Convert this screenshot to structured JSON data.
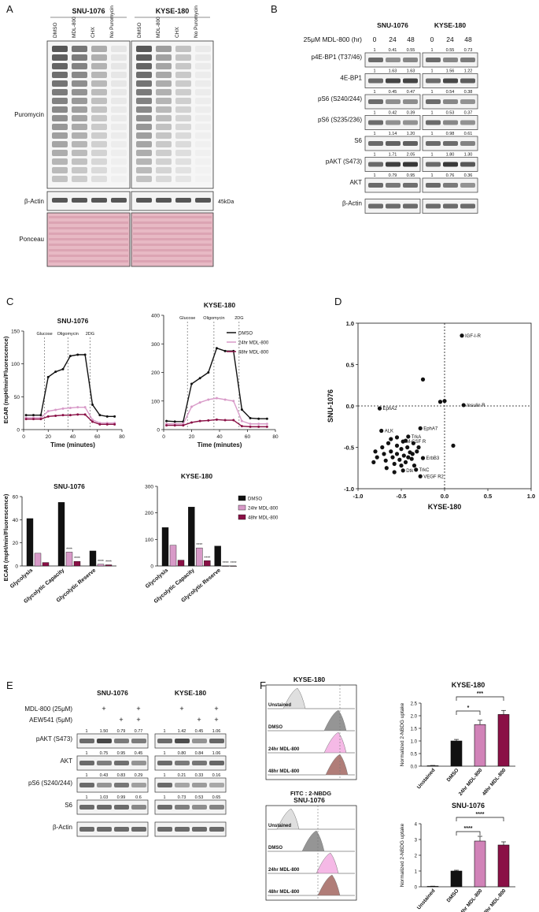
{
  "panels": {
    "A": {
      "letter": "A",
      "cell_lines": [
        "SNU-1076",
        "KYSE-180"
      ],
      "lanes": [
        "DMSO",
        "MDL-800",
        "CHX",
        "No Puromycin"
      ],
      "rows": [
        "Puromycin",
        "β-Actin",
        "Ponceau"
      ],
      "marker": "45kDa"
    },
    "B": {
      "letter": "B",
      "cell_lines": [
        "SNU-1076",
        "KYSE-180"
      ],
      "treatment_label": "25μM MDL-800 (hr)",
      "times": [
        "0",
        "24",
        "48",
        "0",
        "24",
        "48"
      ],
      "rows": [
        {
          "label": "p4E-BP1 (T37/46)",
          "q": [
            "1",
            "0.41",
            "0.55",
            "1",
            "0.55",
            "0.73"
          ]
        },
        {
          "label": "4E-BP1",
          "q": [
            "1",
            "1.63",
            "1.63",
            "1",
            "1.56",
            "1.22"
          ]
        },
        {
          "label": "pS6 (S240/244)",
          "q": [
            "1",
            "0.45",
            "0.47",
            "1",
            "0.54",
            "0.38"
          ]
        },
        {
          "label": "pS6 (S235/236)",
          "q": [
            "1",
            "0.42",
            "0.39",
            "1",
            "0.53",
            "0.37"
          ]
        },
        {
          "label": "S6",
          "q": [
            "1",
            "1.14",
            "1.20",
            "1",
            "0.98",
            "0.61"
          ]
        },
        {
          "label": "pAKT (S473)",
          "q": [
            "1",
            "1.71",
            "2.05",
            "1",
            "1.80",
            "1.30"
          ]
        },
        {
          "label": "AKT",
          "q": [
            "1",
            "0.79",
            "0.95",
            "1",
            "0.76",
            "0.36"
          ]
        },
        {
          "label": "β-Actin",
          "q": [
            "",
            "",
            "",
            "",
            "",
            ""
          ]
        }
      ]
    },
    "C": {
      "letter": "C",
      "ylabel_top": "ECAR (mpH/min/Fluorescence)",
      "ylabel_bottom": "ECAR (mpH/min/Fluorescence)",
      "xlabel": "Time (minutes)",
      "injections": [
        "Glucose",
        "Oligomycin",
        "2DG"
      ],
      "legend": [
        "DMSO",
        "24hr MDL-800",
        "48hr MDL-800"
      ],
      "colors": {
        "dmso": "#111111",
        "h24": "#d89ac8",
        "h48": "#8a1046"
      }
    },
    "D": {
      "letter": "D",
      "xlabel": "KYSE-180",
      "ylabel": "SNU-1076"
    },
    "E": {
      "letter": "E",
      "cell_lines": [
        "SNU-1076",
        "KYSE-180"
      ],
      "treatments": [
        {
          "label": "MDL-800 (25μM)",
          "marks": [
            "",
            "+",
            "",
            "+",
            "",
            "+",
            "",
            "+"
          ]
        },
        {
          "label": "AEW541 (5μM)",
          "marks": [
            "",
            "",
            "+",
            "+",
            "",
            "",
            "+",
            "+"
          ]
        }
      ],
      "rows": [
        {
          "label": "pAKT (S473)",
          "q": [
            "1",
            "1.50",
            "0.79",
            "0.77",
            "1",
            "1.42",
            "0.45",
            "1.06"
          ]
        },
        {
          "label": "AKT",
          "q": [
            "1",
            "0.75",
            "0.95",
            "0.45",
            "1",
            "0.80",
            "0.84",
            "1.06"
          ]
        },
        {
          "label": "pS6 (S240/244)",
          "q": [
            "1",
            "0.43",
            "0.83",
            "0.29",
            "1",
            "0.21",
            "0.33",
            "0.16"
          ]
        },
        {
          "label": "S6",
          "q": [
            "1",
            "1.03",
            "0.99",
            "0.6",
            "1",
            "0.73",
            "0.53",
            "0.65"
          ]
        },
        {
          "label": "β-Actin",
          "q": [
            "",
            "",
            "",
            "",
            "",
            "",
            "",
            ""
          ]
        }
      ]
    },
    "F": {
      "letter": "F",
      "hist_titles": [
        "KYSE-180",
        "SNU-1076"
      ],
      "hist_rows": [
        "Unstained",
        "DMSO",
        "24hr MDL-800",
        "48hr MDL-800"
      ],
      "hist_xlabel": "FITC : 2-NBDG",
      "bar_titles": [
        "KYSE-180",
        "SNU-1076"
      ],
      "bar_ylabel": "Normalized 2-NBDG uptake",
      "bar_categories": [
        "Unstained",
        "DMSO",
        "24hr MDL-800",
        "48hr MDL-800"
      ]
    }
  },
  "chart_data": [
    {
      "type": "line",
      "title": "SNU-1076",
      "xlabel": "Time (minutes)",
      "ylabel": "ECAR (mpH/min/Fluorescence)",
      "xlim": [
        0,
        80
      ],
      "ylim": [
        0,
        150
      ],
      "xticks": [
        0,
        20,
        40,
        60,
        80
      ],
      "yticks": [
        0,
        50,
        100,
        150
      ],
      "x": [
        2,
        8,
        14,
        20,
        26,
        32,
        38,
        44,
        50,
        56,
        62,
        68,
        74
      ],
      "series": [
        {
          "name": "DMSO",
          "values": [
            22,
            22,
            22,
            80,
            88,
            92,
            112,
            114,
            114,
            38,
            22,
            20,
            20
          ]
        },
        {
          "name": "24hr MDL-800",
          "values": [
            18,
            18,
            18,
            28,
            30,
            32,
            33,
            34,
            34,
            15,
            10,
            10,
            10
          ]
        },
        {
          "name": "48hr MDL-800",
          "values": [
            16,
            16,
            16,
            20,
            21,
            22,
            22,
            23,
            23,
            12,
            8,
            8,
            8
          ]
        }
      ]
    },
    {
      "type": "line",
      "title": "KYSE-180",
      "xlabel": "Time (minutes)",
      "ylabel": "",
      "xlim": [
        0,
        80
      ],
      "ylim": [
        0,
        400
      ],
      "xticks": [
        0,
        20,
        40,
        60,
        80
      ],
      "yticks": [
        0,
        100,
        200,
        300,
        400
      ],
      "x": [
        2,
        8,
        14,
        20,
        26,
        32,
        38,
        44,
        50,
        56,
        62,
        68,
        74
      ],
      "series": [
        {
          "name": "DMSO",
          "values": [
            30,
            28,
            28,
            160,
            180,
            200,
            285,
            275,
            275,
            70,
            40,
            38,
            38
          ]
        },
        {
          "name": "24hr MDL-800",
          "values": [
            20,
            20,
            20,
            80,
            95,
            105,
            110,
            105,
            100,
            30,
            20,
            20,
            20
          ]
        },
        {
          "name": "48hr MDL-800",
          "values": [
            15,
            15,
            15,
            25,
            30,
            32,
            35,
            33,
            33,
            12,
            10,
            10,
            10
          ]
        }
      ]
    },
    {
      "type": "bar",
      "title": "SNU-1076",
      "ylabel": "ECAR (mpH/min/Fluorescence)",
      "categories": [
        "Glycolysis",
        "Glycolytic Capacity",
        "Glycolytic Reserve"
      ],
      "ylim": [
        0,
        60
      ],
      "yticks": [
        0,
        20,
        40,
        60
      ],
      "series": [
        {
          "name": "DMSO",
          "values": [
            41,
            55,
            13
          ]
        },
        {
          "name": "24hr MDL-800",
          "values": [
            11,
            12,
            1.5
          ]
        },
        {
          "name": "48hr MDL-800",
          "values": [
            3,
            4,
            1
          ]
        }
      ],
      "annotations": [
        [
          "",
          "****",
          "****"
        ],
        [
          "",
          "****",
          "****"
        ],
        [
          "",
          "****",
          "****"
        ]
      ]
    },
    {
      "type": "bar",
      "title": "KYSE-180",
      "ylabel": "",
      "categories": [
        "Glycolysis",
        "Glycolytic Capacity",
        "Glycolytic Reserve"
      ],
      "ylim": [
        0,
        300
      ],
      "yticks": [
        0,
        100,
        200,
        300
      ],
      "series": [
        {
          "name": "DMSO",
          "values": [
            145,
            222,
            75
          ]
        },
        {
          "name": "24hr MDL-800",
          "values": [
            78,
            68,
            0
          ]
        },
        {
          "name": "48hr MDL-800",
          "values": [
            22,
            20,
            0
          ]
        }
      ],
      "annotations": [
        [
          "",
          "***",
          "****"
        ],
        [
          "",
          "****",
          "****"
        ],
        [
          "",
          "****",
          "****"
        ]
      ]
    },
    {
      "type": "scatter",
      "title": "",
      "xlabel": "KYSE-180",
      "ylabel": "SNU-1076",
      "xlim": [
        -1.0,
        1.0
      ],
      "ylim": [
        -1.0,
        1.0
      ],
      "xticks": [
        -1.0,
        -0.5,
        0.0,
        0.5,
        1.0
      ],
      "yticks": [
        -1.0,
        -0.5,
        0.0,
        0.5,
        1.0
      ],
      "labels": [
        "IGF-I-R",
        "Insulin R",
        "EphA2",
        "EphA7",
        "ALK",
        "TrkA",
        "M-CSF R",
        "ErbB3",
        "Dtk",
        "TrkC",
        "VEGF R2"
      ],
      "points": [
        {
          "x": 0.2,
          "y": 0.85,
          "label": "IGF-I-R"
        },
        {
          "x": 0.22,
          "y": 0.01,
          "label": "Insulin R"
        },
        {
          "x": -0.75,
          "y": -0.03,
          "label": "EphA2"
        },
        {
          "x": -0.28,
          "y": -0.27,
          "label": "EphA7"
        },
        {
          "x": -0.73,
          "y": -0.3,
          "label": "ALK"
        },
        {
          "x": -0.42,
          "y": -0.37,
          "label": "TrkA"
        },
        {
          "x": -0.48,
          "y": -0.43,
          "label": "M-CSF R"
        },
        {
          "x": -0.25,
          "y": -0.63,
          "label": "ErbB3"
        },
        {
          "x": -0.48,
          "y": -0.78,
          "label": "Dtk"
        },
        {
          "x": -0.33,
          "y": -0.77,
          "label": "TrkC"
        },
        {
          "x": -0.28,
          "y": -0.85,
          "label": "VEGF R2"
        },
        {
          "x": -0.25,
          "y": 0.32,
          "label": ""
        },
        {
          "x": -0.05,
          "y": 0.05,
          "label": ""
        },
        {
          "x": 0.0,
          "y": 0.06,
          "label": ""
        },
        {
          "x": 0.1,
          "y": -0.48,
          "label": ""
        },
        {
          "x": -0.8,
          "y": -0.55,
          "label": ""
        },
        {
          "x": -0.78,
          "y": -0.62,
          "label": ""
        },
        {
          "x": -0.82,
          "y": -0.68,
          "label": ""
        },
        {
          "x": -0.72,
          "y": -0.5,
          "label": ""
        },
        {
          "x": -0.7,
          "y": -0.58,
          "label": ""
        },
        {
          "x": -0.68,
          "y": -0.66,
          "label": ""
        },
        {
          "x": -0.65,
          "y": -0.45,
          "label": ""
        },
        {
          "x": -0.62,
          "y": -0.55,
          "label": ""
        },
        {
          "x": -0.6,
          "y": -0.62,
          "label": ""
        },
        {
          "x": -0.58,
          "y": -0.7,
          "label": ""
        },
        {
          "x": -0.55,
          "y": -0.48,
          "label": ""
        },
        {
          "x": -0.55,
          "y": -0.58,
          "label": ""
        },
        {
          "x": -0.52,
          "y": -0.65,
          "label": ""
        },
        {
          "x": -0.5,
          "y": -0.52,
          "label": ""
        },
        {
          "x": -0.47,
          "y": -0.6,
          "label": ""
        },
        {
          "x": -0.45,
          "y": -0.68,
          "label": ""
        },
        {
          "x": -0.43,
          "y": -0.5,
          "label": ""
        },
        {
          "x": -0.4,
          "y": -0.56,
          "label": ""
        },
        {
          "x": -0.38,
          "y": -0.64,
          "label": ""
        },
        {
          "x": -0.36,
          "y": -0.45,
          "label": ""
        },
        {
          "x": -0.35,
          "y": -0.72,
          "label": ""
        },
        {
          "x": -0.32,
          "y": -0.55,
          "label": ""
        },
        {
          "x": -0.3,
          "y": -0.5,
          "label": ""
        },
        {
          "x": -0.62,
          "y": -0.4,
          "label": ""
        },
        {
          "x": -0.67,
          "y": -0.75,
          "label": ""
        },
        {
          "x": -0.58,
          "y": -0.8,
          "label": ""
        },
        {
          "x": -0.5,
          "y": -0.72,
          "label": ""
        },
        {
          "x": -0.42,
          "y": -0.62,
          "label": ""
        },
        {
          "x": -0.55,
          "y": -0.38,
          "label": ""
        },
        {
          "x": -0.45,
          "y": -0.42,
          "label": ""
        },
        {
          "x": -0.37,
          "y": -0.58,
          "label": ""
        }
      ]
    },
    {
      "type": "bar",
      "title": "KYSE-180",
      "ylabel": "Normalized 2-NBDG uptake",
      "categories": [
        "Unstained",
        "DMSO",
        "24hr MDL-800",
        "48hr MDL-800"
      ],
      "ylim": [
        0,
        2.5
      ],
      "yticks": [
        0.0,
        0.5,
        1.0,
        1.5,
        2.0,
        2.5
      ],
      "values": [
        0.02,
        1.0,
        1.65,
        2.05
      ],
      "errors": [
        0.01,
        0.06,
        0.17,
        0.16
      ],
      "colors": [
        "#ffffff",
        "#111111",
        "#d183b8",
        "#8a1046"
      ],
      "significance": [
        {
          "from": 1,
          "to": 2,
          "label": "*"
        },
        {
          "from": 1,
          "to": 3,
          "label": "***"
        }
      ]
    },
    {
      "type": "bar",
      "title": "SNU-1076",
      "ylabel": "Normalized 2-NBDG uptake",
      "categories": [
        "Unstained",
        "DMSO",
        "24hr MDL-800",
        "48hr MDL-800"
      ],
      "ylim": [
        0,
        4
      ],
      "yticks": [
        0,
        1,
        2,
        3,
        4
      ],
      "values": [
        0.03,
        1.0,
        2.9,
        2.65
      ],
      "errors": [
        0.01,
        0.05,
        0.3,
        0.2
      ],
      "colors": [
        "#ffffff",
        "#111111",
        "#d183b8",
        "#8a1046"
      ],
      "significance": [
        {
          "from": 1,
          "to": 2,
          "label": "****"
        },
        {
          "from": 1,
          "to": 3,
          "label": "****"
        }
      ]
    }
  ]
}
